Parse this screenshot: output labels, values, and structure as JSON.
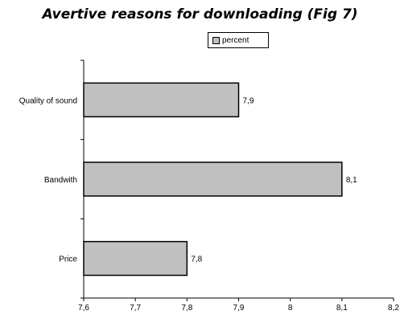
{
  "chart_data": {
    "type": "bar",
    "orientation": "horizontal",
    "title": "Avertive reasons for downloading (Fig 7)",
    "categories": [
      "Quality of sound",
      "Bandwith",
      "Price"
    ],
    "series": [
      {
        "name": "percent",
        "values": [
          7.9,
          8.1,
          7.8
        ],
        "color": "#c0c0c0"
      }
    ],
    "data_labels": [
      "7,9",
      "8,1",
      "7,8"
    ],
    "xlim": [
      7.6,
      8.2
    ],
    "x_ticks": [
      7.6,
      7.7,
      7.8,
      7.9,
      8.0,
      8.1,
      8.2
    ],
    "x_tick_labels": [
      "7,6",
      "7,7",
      "7,8",
      "7,9",
      "8",
      "8,1",
      "8,2"
    ],
    "xlabel": "",
    "ylabel": "",
    "grid": false,
    "legend_position": "top"
  }
}
